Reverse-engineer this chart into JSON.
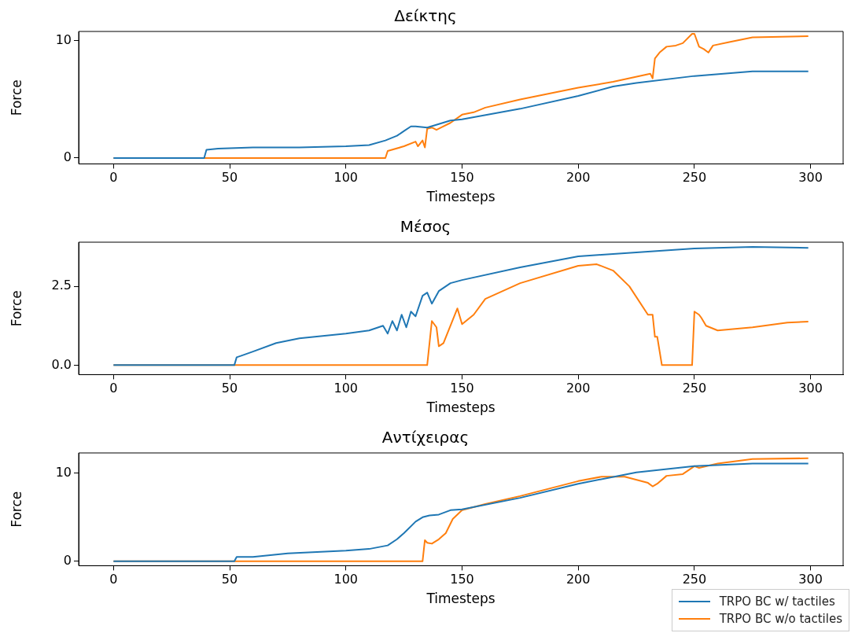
{
  "chart_data": [
    {
      "type": "line",
      "title": "Δείκτης",
      "xlabel": "Timesteps",
      "ylabel": "Force",
      "xlim": [
        -15,
        314
      ],
      "xticks": [
        0,
        50,
        100,
        150,
        200,
        250,
        300
      ],
      "ylim": [
        -0.5,
        10.8
      ],
      "yticks": [
        0,
        10
      ],
      "grid": false,
      "legend": false,
      "series": [
        {
          "color": "#1f77b4",
          "x": [
            0,
            39,
            40,
            45,
            60,
            80,
            100,
            110,
            117,
            122,
            125,
            128,
            130,
            135,
            140,
            145,
            150,
            175,
            200,
            215,
            225,
            250,
            275,
            299
          ],
          "values": [
            0,
            0,
            0.7,
            0.8,
            0.9,
            0.9,
            1.0,
            1.1,
            1.5,
            1.9,
            2.3,
            2.7,
            2.7,
            2.6,
            2.9,
            3.2,
            3.3,
            4.2,
            5.3,
            6.1,
            6.4,
            7.0,
            7.4,
            7.4
          ]
        },
        {
          "color": "#ff7f0e",
          "x": [
            0,
            117,
            118,
            125,
            130,
            131,
            133,
            134,
            135,
            137,
            139,
            141,
            145,
            150,
            155,
            160,
            175,
            200,
            215,
            231,
            232,
            233,
            235,
            238,
            242,
            245,
            249,
            250,
            252,
            254,
            256,
            258,
            265,
            275,
            299
          ],
          "values": [
            0,
            0,
            0.6,
            1.0,
            1.4,
            1.0,
            1.5,
            0.9,
            2.5,
            2.6,
            2.4,
            2.6,
            3.0,
            3.7,
            3.9,
            4.3,
            5.0,
            6.0,
            6.5,
            7.2,
            6.8,
            8.5,
            9.0,
            9.5,
            9.6,
            9.8,
            10.6,
            10.6,
            9.5,
            9.3,
            9.0,
            9.6,
            9.9,
            10.3,
            10.4
          ]
        }
      ]
    },
    {
      "type": "line",
      "title": "Μέσος",
      "xlabel": "Timesteps",
      "ylabel": "Force",
      "xlim": [
        -15,
        314
      ],
      "xticks": [
        0,
        50,
        100,
        150,
        200,
        250,
        300
      ],
      "ylim": [
        -0.3,
        3.9
      ],
      "yticks": [
        {
          "value": 0,
          "label": "0.0"
        },
        2.5
      ],
      "grid": false,
      "legend": false,
      "series": [
        {
          "color": "#1f77b4",
          "x": [
            0,
            52,
            53,
            55,
            60,
            70,
            80,
            100,
            110,
            116,
            118,
            120,
            122,
            124,
            126,
            128,
            130,
            133,
            135,
            137,
            140,
            145,
            150,
            175,
            200,
            210,
            250,
            275,
            299
          ],
          "values": [
            0,
            0,
            0.25,
            0.3,
            0.43,
            0.7,
            0.85,
            1.0,
            1.1,
            1.25,
            1.0,
            1.4,
            1.1,
            1.6,
            1.2,
            1.7,
            1.55,
            2.2,
            2.3,
            1.95,
            2.35,
            2.6,
            2.7,
            3.1,
            3.45,
            3.5,
            3.7,
            3.75,
            3.72
          ]
        },
        {
          "color": "#ff7f0e",
          "x": [
            0,
            135,
            137,
            139,
            140,
            142,
            148,
            150,
            155,
            160,
            175,
            200,
            208,
            215,
            222,
            230,
            232,
            233,
            234,
            236,
            249,
            250,
            252,
            253,
            255,
            260,
            275,
            290,
            299
          ],
          "values": [
            0,
            0,
            1.4,
            1.2,
            0.6,
            0.7,
            1.8,
            1.3,
            1.6,
            2.1,
            2.6,
            3.15,
            3.2,
            3.0,
            2.5,
            1.6,
            1.6,
            0.9,
            0.9,
            0,
            0,
            1.7,
            1.6,
            1.5,
            1.25,
            1.1,
            1.2,
            1.35,
            1.38
          ]
        }
      ]
    },
    {
      "type": "line",
      "title": "Αντίχειρας",
      "xlabel": "Timesteps",
      "ylabel": "Force",
      "xlim": [
        -15,
        314
      ],
      "xticks": [
        0,
        50,
        100,
        150,
        200,
        250,
        300
      ],
      "ylim": [
        -0.5,
        12.3
      ],
      "yticks": [
        0,
        10
      ],
      "grid": false,
      "legend": "bottom right",
      "series": [
        {
          "name": "TRPO BC w/ tactiles",
          "color": "#1f77b4",
          "x": [
            0,
            52,
            53,
            60,
            75,
            100,
            110,
            118,
            122,
            125,
            130,
            133,
            136,
            140,
            145,
            150,
            175,
            200,
            225,
            250,
            275,
            299
          ],
          "values": [
            0,
            0,
            0.5,
            0.5,
            0.9,
            1.2,
            1.4,
            1.8,
            2.5,
            3.2,
            4.5,
            5.0,
            5.2,
            5.3,
            5.8,
            5.9,
            7.2,
            8.8,
            10.1,
            10.8,
            11.1,
            11.1
          ]
        },
        {
          "name": "TRPO BC w/o tactiles",
          "color": "#ff7f0e",
          "x": [
            0,
            133,
            134,
            135,
            137,
            140,
            143,
            146,
            150,
            160,
            175,
            200,
            210,
            220,
            230,
            232,
            234,
            238,
            245,
            250,
            252,
            260,
            275,
            299
          ],
          "values": [
            0,
            0,
            2.4,
            2.1,
            2.0,
            2.5,
            3.2,
            4.8,
            5.8,
            6.5,
            7.4,
            9.1,
            9.6,
            9.6,
            8.9,
            8.5,
            8.8,
            9.7,
            9.9,
            10.8,
            10.6,
            11.1,
            11.6,
            11.7
          ]
        }
      ]
    }
  ]
}
